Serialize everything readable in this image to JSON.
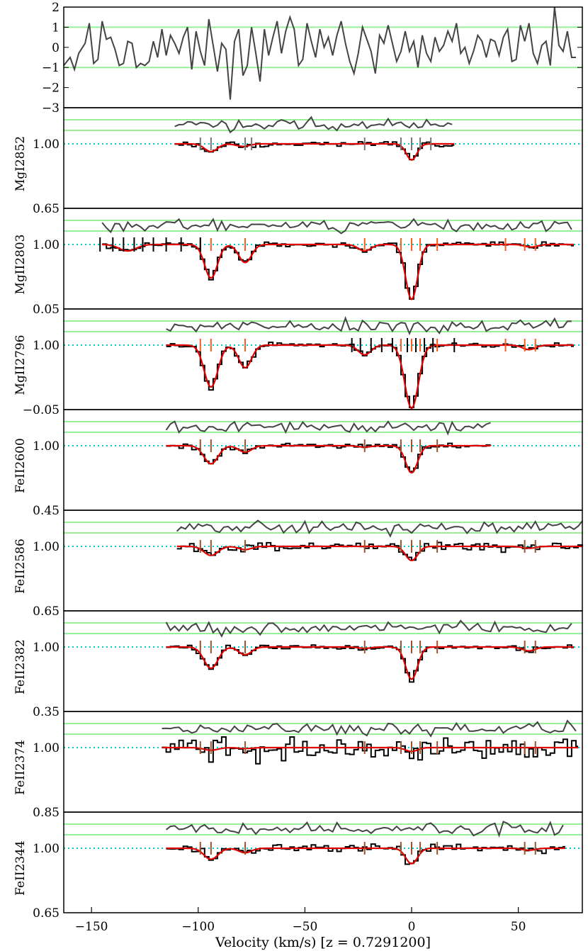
{
  "chart_data": {
    "type": "line",
    "xlabel": "Velocity (km/s) [z = 0.7291200]",
    "xlim": [
      -163,
      80
    ],
    "xticks": [
      -150,
      -100,
      -50,
      0,
      50
    ],
    "xtick_labels": [
      "−150",
      "−100",
      "−50",
      "0",
      "50"
    ],
    "colors": {
      "data": "#000000",
      "model": "#e00000",
      "residual": "#444444",
      "sigma_band": "#99ee99",
      "continuum": "#00cccc",
      "tick_mark": "#ff5a1f",
      "tick_mark_dark": "#a0522d",
      "tick_mark_grey": "#777777"
    },
    "residual_panel": {
      "yticks": [
        2,
        1,
        0,
        -1,
        -2,
        -3
      ],
      "ytick_labels": [
        "2",
        "1",
        "0",
        "−1",
        "−2",
        "−3"
      ],
      "ylim": [
        -3,
        2
      ],
      "sigma_lines": [
        1,
        -1
      ],
      "residuals": [
        [
          -163,
          -0.9
        ],
        [
          -160,
          -0.5
        ],
        [
          -158,
          -1.1
        ],
        [
          -156,
          -0.3
        ],
        [
          -153,
          0.2
        ],
        [
          -151,
          1.2
        ],
        [
          -149,
          -0.8
        ],
        [
          -147,
          -0.6
        ],
        [
          -145,
          1.3
        ],
        [
          -143,
          0.4
        ],
        [
          -141,
          0.5
        ],
        [
          -139,
          -0.1
        ],
        [
          -137,
          -0.9
        ],
        [
          -135,
          -0.8
        ],
        [
          -133,
          0.3
        ],
        [
          -131,
          0.2
        ],
        [
          -129,
          -1.0
        ],
        [
          -127,
          -0.8
        ],
        [
          -125,
          -0.9
        ],
        [
          -123,
          -0.7
        ],
        [
          -121,
          0.3
        ],
        [
          -119,
          -0.5
        ],
        [
          -117,
          0.9
        ],
        [
          -115,
          -0.4
        ],
        [
          -113,
          0.6
        ],
        [
          -111,
          0.2
        ],
        [
          -109,
          -0.3
        ],
        [
          -107,
          0.5
        ],
        [
          -105,
          1.0
        ],
        [
          -103,
          -1.1
        ],
        [
          -101,
          0.8
        ],
        [
          -99,
          -0.2
        ],
        [
          -97,
          -0.9
        ],
        [
          -95,
          1.4
        ],
        [
          -93,
          0.1
        ],
        [
          -91,
          -1.2
        ],
        [
          -89,
          0.2
        ],
        [
          -87,
          -0.1
        ],
        [
          -85,
          -2.6
        ],
        [
          -83,
          0.3
        ],
        [
          -81,
          0.9
        ],
        [
          -79,
          -1.4
        ],
        [
          -77,
          -0.9
        ],
        [
          -75,
          1.0
        ],
        [
          -73,
          -0.3
        ],
        [
          -71,
          -1.7
        ],
        [
          -69,
          0.9
        ],
        [
          -67,
          -0.4
        ],
        [
          -65,
          0.5
        ],
        [
          -63,
          1.3
        ],
        [
          -61,
          -0.3
        ],
        [
          -59,
          0.8
        ],
        [
          -57,
          1.5
        ],
        [
          -55,
          0.9
        ],
        [
          -53,
          -0.9
        ],
        [
          -51,
          -0.6
        ],
        [
          -49,
          1.2
        ],
        [
          -47,
          0.3
        ],
        [
          -45,
          -0.5
        ],
        [
          -43,
          0.9
        ],
        [
          -41,
          0.0
        ],
        [
          -39,
          0.5
        ],
        [
          -37,
          -0.4
        ],
        [
          -35,
          0.6
        ],
        [
          -33,
          1.3
        ],
        [
          -31,
          0.2
        ],
        [
          -29,
          -0.7
        ],
        [
          -27,
          -1.3
        ],
        [
          -25,
          -0.3
        ],
        [
          -23,
          1.0
        ],
        [
          -21,
          0.4
        ],
        [
          -19,
          -0.2
        ],
        [
          -17,
          -1.3
        ],
        [
          -15,
          0.6
        ],
        [
          -13,
          0.2
        ],
        [
          -11,
          1.1
        ],
        [
          -9,
          0.2
        ],
        [
          -7,
          -0.7
        ],
        [
          -5,
          -0.2
        ],
        [
          -3,
          0.8
        ],
        [
          -1,
          -0.2
        ],
        [
          1,
          0.3
        ],
        [
          3,
          -1.0
        ],
        [
          5,
          0.6
        ],
        [
          7,
          -0.3
        ],
        [
          9,
          -0.7
        ],
        [
          11,
          0.5
        ],
        [
          13,
          -0.2
        ],
        [
          15,
          0.1
        ],
        [
          17,
          0.8
        ],
        [
          19,
          0.3
        ],
        [
          21,
          1.2
        ],
        [
          23,
          -0.3
        ],
        [
          25,
          0.0
        ],
        [
          27,
          -0.8
        ],
        [
          29,
          -0.2
        ],
        [
          31,
          0.6
        ],
        [
          33,
          0.3
        ],
        [
          35,
          -0.5
        ],
        [
          37,
          0.4
        ],
        [
          39,
          0.3
        ],
        [
          41,
          -0.4
        ],
        [
          43,
          0.5
        ],
        [
          45,
          0.9
        ],
        [
          47,
          -0.7
        ],
        [
          49,
          -0.6
        ],
        [
          51,
          1.1
        ],
        [
          53,
          0.3
        ],
        [
          55,
          1.2
        ],
        [
          57,
          -0.3
        ],
        [
          59,
          -0.8
        ],
        [
          61,
          0.1
        ],
        [
          63,
          0.3
        ],
        [
          65,
          -0.9
        ],
        [
          67,
          2.0
        ],
        [
          69,
          0.1
        ],
        [
          71,
          -0.2
        ],
        [
          73,
          0.8
        ],
        [
          75,
          -0.5
        ],
        [
          77,
          -0.5
        ]
      ]
    },
    "panels": [
      {
        "label": "MgI2852",
        "ytick_labels": [
          "1.00",
          "0.65"
        ],
        "xrange": [
          -111,
          20
        ],
        "ymin_value": 0.65,
        "components": [
          {
            "v": -94,
            "depth": 0.12,
            "sigma": 3
          },
          {
            "v": -79,
            "depth": 0.04,
            "sigma": 3
          },
          {
            "v": 0,
            "depth": 0.25,
            "sigma": 2.5
          }
        ],
        "marks": {
          "color": "grey",
          "v": [
            -99,
            -94,
            -78,
            -75,
            -22,
            -5,
            0,
            4,
            9
          ]
        }
      },
      {
        "label": "MgII2803",
        "ytick_labels": [
          "1.00",
          "0.05"
        ],
        "xrange": [
          -145,
          76
        ],
        "ymin_value": 0.05,
        "components": [
          {
            "v": -133,
            "depth": 0.1,
            "sigma": 4
          },
          {
            "v": -94,
            "depth": 0.52,
            "sigma": 3
          },
          {
            "v": -78,
            "depth": 0.28,
            "sigma": 3
          },
          {
            "v": -22,
            "depth": 0.1,
            "sigma": 3
          },
          {
            "v": 0,
            "depth": 0.85,
            "sigma": 2.8
          },
          {
            "v": 56,
            "depth": 0.04,
            "sigma": 3
          }
        ],
        "marks": {
          "color": "orange",
          "v": [
            -99,
            -94,
            -78,
            -22,
            -5,
            0,
            4,
            12,
            44,
            53,
            58
          ]
        },
        "black_marks": [
          -146,
          -140,
          -135,
          -130,
          -126,
          -121,
          -115,
          -108,
          -99
        ]
      },
      {
        "label": "MgII2796",
        "ytick_labels": [
          "1.00",
          "−0.05"
        ],
        "xrange": [
          -115,
          76
        ],
        "ymin_value": -0.05,
        "components": [
          {
            "v": -94,
            "depth": 0.65,
            "sigma": 3.2
          },
          {
            "v": -78,
            "depth": 0.35,
            "sigma": 3
          },
          {
            "v": -22,
            "depth": 0.15,
            "sigma": 3
          },
          {
            "v": 0,
            "depth": 0.98,
            "sigma": 3.2
          },
          {
            "v": 55,
            "depth": 0.07,
            "sigma": 3
          }
        ],
        "marks": {
          "color": "orange",
          "v": [
            -99,
            -94,
            -78,
            -5,
            0,
            4,
            12,
            44,
            53,
            58
          ]
        },
        "black_marks": [
          -28,
          -24,
          -19,
          -14,
          -9,
          -2,
          2,
          6,
          10,
          20
        ]
      },
      {
        "label": "FeII2600",
        "ytick_labels": [
          "1.00",
          "0.45"
        ],
        "xrange": [
          -115,
          37
        ],
        "ymin_value": 0.45,
        "components": [
          {
            "v": -94,
            "depth": 0.28,
            "sigma": 3.3
          },
          {
            "v": -78,
            "depth": 0.1,
            "sigma": 3
          },
          {
            "v": -22,
            "depth": 0.02,
            "sigma": 3
          },
          {
            "v": 0,
            "depth": 0.42,
            "sigma": 2.8
          }
        ],
        "marks": {
          "color": "dark",
          "v": [
            -99,
            -94,
            -78,
            -22,
            -5,
            0,
            4,
            12
          ]
        }
      },
      {
        "label": "FeII2586",
        "ytick_labels": [
          "1.00",
          "0.65"
        ],
        "xrange": [
          -110,
          80
        ],
        "ymin_value": 0.65,
        "components": [
          {
            "v": -94,
            "depth": 0.14,
            "sigma": 3.3
          },
          {
            "v": -78,
            "depth": 0.05,
            "sigma": 3
          },
          {
            "v": 0,
            "depth": 0.22,
            "sigma": 2.8
          },
          {
            "v": 55,
            "depth": 0.03,
            "sigma": 3
          }
        ],
        "marks": {
          "color": "dark",
          "v": [
            -99,
            -94,
            -78,
            -22,
            -5,
            0,
            4,
            12,
            53,
            58
          ]
        }
      },
      {
        "label": "FeII2382",
        "ytick_labels": [
          "1.00",
          "0.35"
        ],
        "xrange": [
          -115,
          76
        ],
        "ymin_value": 0.35,
        "components": [
          {
            "v": -94,
            "depth": 0.33,
            "sigma": 3.3
          },
          {
            "v": -78,
            "depth": 0.12,
            "sigma": 3
          },
          {
            "v": -22,
            "depth": 0.02,
            "sigma": 3
          },
          {
            "v": 0,
            "depth": 0.5,
            "sigma": 2.8
          },
          {
            "v": 55,
            "depth": 0.06,
            "sigma": 3
          }
        ],
        "marks": {
          "color": "dark",
          "v": [
            -99,
            -94,
            -78,
            -22,
            -5,
            0,
            4,
            12,
            53,
            58
          ]
        }
      },
      {
        "label": "FeII2374",
        "ytick_labels": [
          "1.00",
          "0.85"
        ],
        "xrange": [
          -117,
          78
        ],
        "ymin_value": 0.85,
        "components": [
          {
            "v": -94,
            "depth": 0.04,
            "sigma": 3.3
          },
          {
            "v": -78,
            "depth": 0.015,
            "sigma": 3
          },
          {
            "v": 0,
            "depth": 0.06,
            "sigma": 2.8
          }
        ],
        "marks": {
          "color": "dark",
          "v": [
            -99,
            -94,
            -78,
            -22,
            -5,
            0,
            4,
            12,
            53,
            58
          ]
        }
      },
      {
        "label": "FeII2344",
        "ytick_labels": [
          "1.00",
          "0.65"
        ],
        "xrange": [
          -115,
          72
        ],
        "ymin_value": 0.65,
        "components": [
          {
            "v": -94,
            "depth": 0.17,
            "sigma": 3.3
          },
          {
            "v": -78,
            "depth": 0.07,
            "sigma": 3
          },
          {
            "v": 0,
            "depth": 0.24,
            "sigma": 2.8
          },
          {
            "v": 55,
            "depth": 0.03,
            "sigma": 3
          }
        ],
        "marks": {
          "color": "dark",
          "v": [
            -99,
            -94,
            -78,
            -22,
            -5,
            0,
            4,
            12,
            53,
            58
          ]
        }
      }
    ]
  }
}
